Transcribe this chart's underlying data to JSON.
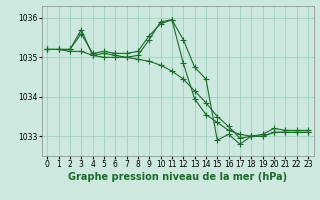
{
  "background_color": "#cce8df",
  "plot_bg_color": "#cce8df",
  "grid_color": "#99ccbb",
  "line_color": "#1a6b2a",
  "title": "Graphe pression niveau de la mer (hPa)",
  "xlim": [
    -0.5,
    23.5
  ],
  "ylim": [
    1032.5,
    1036.3
  ],
  "yticks": [
    1033,
    1034,
    1035,
    1036
  ],
  "xticks": [
    0,
    1,
    2,
    3,
    4,
    5,
    6,
    7,
    8,
    9,
    10,
    11,
    12,
    13,
    14,
    15,
    16,
    17,
    18,
    19,
    20,
    21,
    22,
    23
  ],
  "series": [
    [
      1035.2,
      1035.2,
      1035.2,
      1035.6,
      1035.1,
      1035.15,
      1035.1,
      1035.1,
      1035.15,
      1035.55,
      1035.85,
      1035.95,
      1035.45,
      1034.75,
      1034.45,
      1032.9,
      1033.05,
      1032.8,
      1033.0,
      1033.05,
      1033.2,
      1033.15,
      1033.15,
      1033.15
    ],
    [
      1035.2,
      1035.2,
      1035.2,
      1035.7,
      1035.05,
      1035.1,
      1035.05,
      1035.0,
      1035.05,
      1035.45,
      1035.9,
      1035.95,
      1034.85,
      1033.95,
      1033.55,
      1033.35,
      1033.15,
      1033.05,
      1033.0,
      1033.0,
      1033.1,
      1033.1,
      1033.1,
      1033.1
    ],
    [
      1035.2,
      1035.2,
      1035.15,
      1035.15,
      1035.05,
      1035.0,
      1035.0,
      1035.0,
      1034.95,
      1034.9,
      1034.8,
      1034.65,
      1034.45,
      1034.15,
      1033.85,
      1033.5,
      1033.25,
      1032.95,
      1033.0,
      1033.0,
      1033.1,
      1033.1,
      1033.1,
      1033.1
    ]
  ],
  "marker": "+",
  "markersize": 4,
  "linewidth": 0.8,
  "title_fontsize": 7,
  "tick_fontsize": 5.5,
  "ylabel_fontsize": 5.5
}
